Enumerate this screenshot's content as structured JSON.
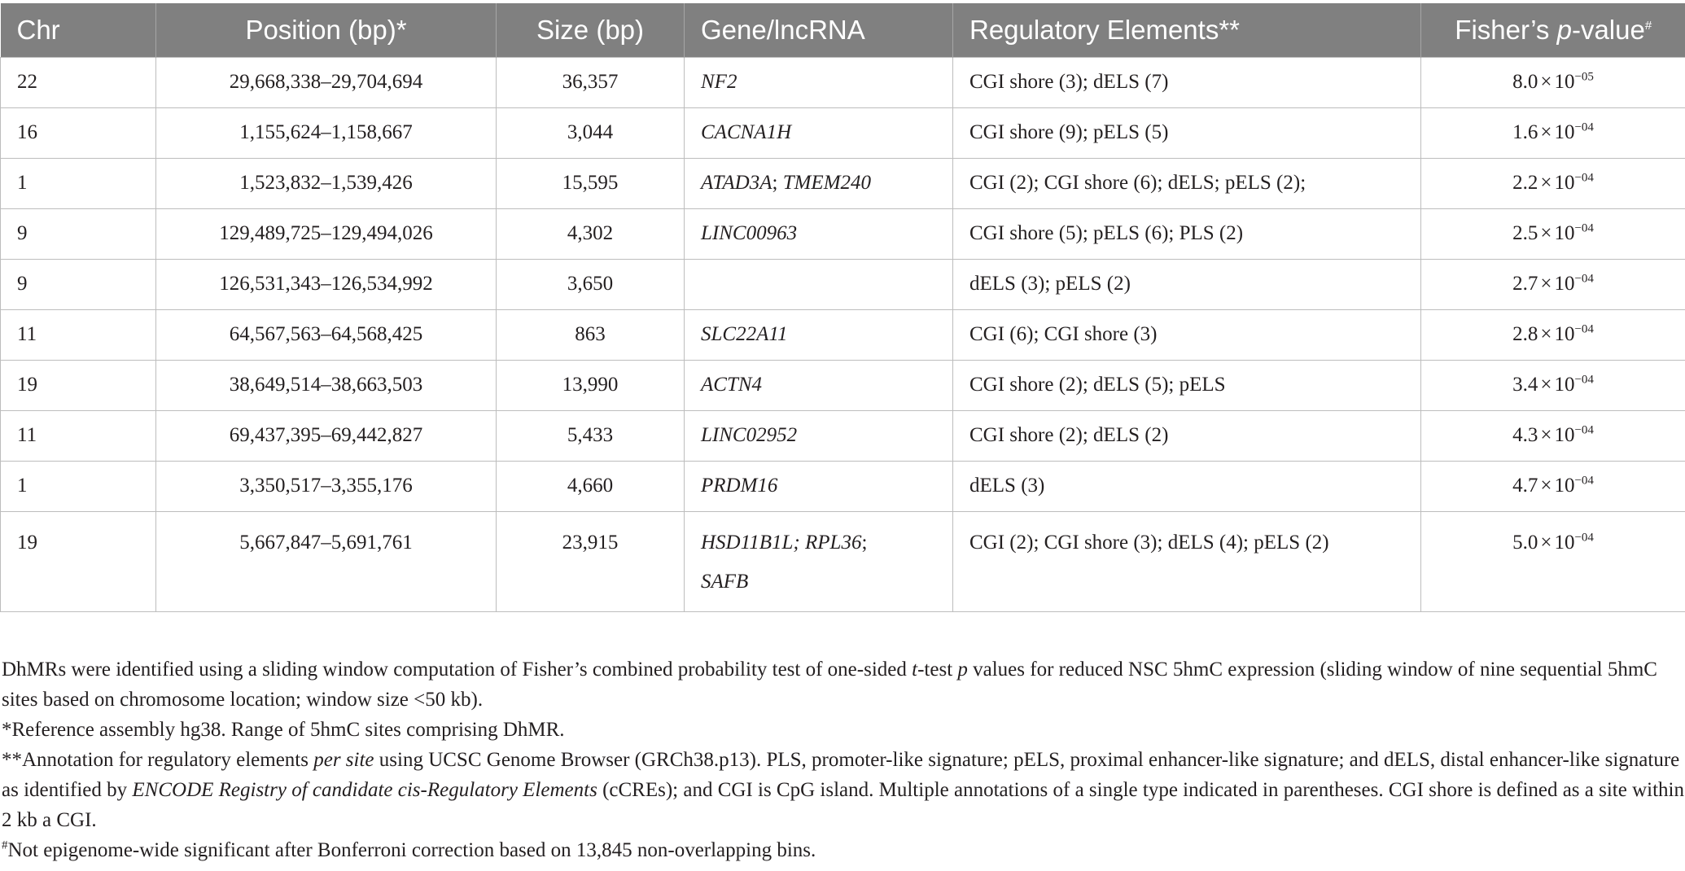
{
  "table": {
    "headers": {
      "chr": "Chr",
      "position": "Position (bp)*",
      "size": "Size (bp)",
      "gene": "Gene/lncRNA",
      "regulatory": "Regulatory Elements**",
      "pvalue_pre": "Fisher’s ",
      "pvalue_italic": "p",
      "pvalue_post": "-value",
      "pvalue_sup": "#"
    },
    "rows": [
      {
        "chr": "22",
        "position": "29,668,338–29,704,694",
        "size": "36,357",
        "gene_a": "NF2",
        "gene_sep": "",
        "gene_b": "",
        "regulatory": "CGI shore (3); dELS (7)",
        "p_mantissa": "8.0",
        "p_times": "×",
        "p_base": "10",
        "p_exp": "−05"
      },
      {
        "chr": "16",
        "position": "1,155,624–1,158,667",
        "size": "3,044",
        "gene_a": "CACNA1H",
        "gene_sep": "",
        "gene_b": "",
        "regulatory": "CGI shore (9); pELS (5)",
        "p_mantissa": "1.6",
        "p_times": "×",
        "p_base": "10",
        "p_exp": "−04"
      },
      {
        "chr": "1",
        "position": "1,523,832–1,539,426",
        "size": "15,595",
        "gene_a": "ATAD3A",
        "gene_sep": "; ",
        "gene_b": "TMEM240",
        "regulatory": "CGI (2); CGI shore (6); dELS; pELS (2);",
        "p_mantissa": "2.2",
        "p_times": "×",
        "p_base": "10",
        "p_exp": "−04"
      },
      {
        "chr": "9",
        "position": "129,489,725–129,494,026",
        "size": "4,302",
        "gene_a": "LINC00963",
        "gene_sep": "",
        "gene_b": "",
        "regulatory": "CGI shore (5); pELS (6); PLS (2)",
        "p_mantissa": "2.5",
        "p_times": "×",
        "p_base": "10",
        "p_exp": "−04"
      },
      {
        "chr": "9",
        "position": "126,531,343–126,534,992",
        "size": "3,650",
        "gene_a": "",
        "gene_sep": "",
        "gene_b": "",
        "regulatory": "dELS (3); pELS (2)",
        "p_mantissa": "2.7",
        "p_times": "×",
        "p_base": "10",
        "p_exp": "−04"
      },
      {
        "chr": "11",
        "position": "64,567,563–64,568,425",
        "size": "863",
        "gene_a": "SLC22A11",
        "gene_sep": "",
        "gene_b": "",
        "regulatory": "CGI (6); CGI shore (3)",
        "p_mantissa": "2.8",
        "p_times": "×",
        "p_base": "10",
        "p_exp": "−04"
      },
      {
        "chr": "19",
        "position": "38,649,514–38,663,503",
        "size": "13,990",
        "gene_a": "ACTN4",
        "gene_sep": "",
        "gene_b": "",
        "regulatory": "CGI shore (2); dELS (5); pELS",
        "p_mantissa": "3.4",
        "p_times": "×",
        "p_base": "10",
        "p_exp": "−04"
      },
      {
        "chr": "11",
        "position": "69,437,395–69,442,827",
        "size": "5,433",
        "gene_a": "LINC02952",
        "gene_sep": "",
        "gene_b": "",
        "regulatory": "CGI shore (2); dELS (2)",
        "p_mantissa": "4.3",
        "p_times": "×",
        "p_base": "10",
        "p_exp": "−04"
      },
      {
        "chr": "1",
        "position": "3,350,517–3,355,176",
        "size": "4,660",
        "gene_a": "PRDM16",
        "gene_sep": "",
        "gene_b": "",
        "regulatory": "dELS (3)",
        "p_mantissa": "4.7",
        "p_times": "×",
        "p_base": "10",
        "p_exp": "−04"
      }
    ],
    "last_row": {
      "chr": "19",
      "position": "5,667,847–5,691,761",
      "size": "23,915",
      "gene_line1_a": "HSD11B1L; RPL36",
      "gene_line1_sep": ";",
      "gene_line2": "SAFB",
      "regulatory": "CGI (2); CGI shore (3); dELS (4); pELS (2)",
      "p_mantissa": "5.0",
      "p_times": "×",
      "p_base": "10",
      "p_exp": "−04"
    }
  },
  "notes": {
    "main_1": "DhMRs were identified using a sliding window computation of Fisher’s combined probability test of one-sided ",
    "main_t": "t",
    "main_2": "-test ",
    "main_p": "p",
    "main_3": " values for reduced NSC 5hmC expression (sliding window of nine sequential 5hmC sites based on chromosome location; window size <50 kb).",
    "star": "*Reference assembly hg38. Range of 5hmC sites comprising DhMR.",
    "dstar_1": "**Annotation for regulatory elements ",
    "dstar_italic1": "per site",
    "dstar_2": " using UCSC Genome Browser (GRCh38.p13). PLS, promoter-like signature; pELS, proximal enhancer-like signature; and dELS, distal enhancer-like signature as identified by ",
    "dstar_italic2": "ENCODE Registry of candidate cis-Regulatory Elements",
    "dstar_3": " (cCREs); and CGI is CpG island. Multiple annotations of a single type indicated in parentheses. CGI shore is defined as a site within 2 kb a CGI.",
    "hash_sup": "#",
    "hash": "Not epigenome-wide significant after Bonferroni correction based on 13,845 non-overlapping bins."
  }
}
